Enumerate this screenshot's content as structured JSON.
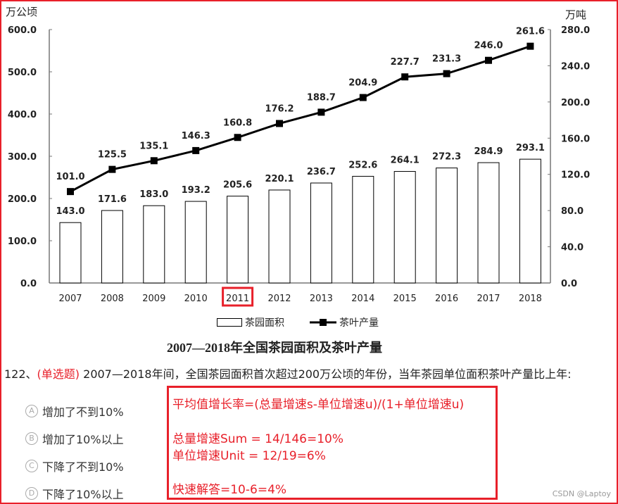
{
  "chart_data": {
    "type": "bar+line",
    "title": "2007—2018年全国茶园面积及茶叶产量",
    "categories": [
      "2007",
      "2008",
      "2009",
      "2010",
      "2011",
      "2012",
      "2013",
      "2014",
      "2015",
      "2016",
      "2017",
      "2018"
    ],
    "highlighted_category": "2011",
    "series": [
      {
        "name": "茶园面积",
        "type": "bar",
        "axis": "left",
        "values": [
          143.0,
          171.6,
          183.0,
          193.2,
          205.6,
          220.1,
          236.7,
          252.6,
          264.1,
          272.3,
          284.9,
          293.1
        ]
      },
      {
        "name": "茶叶产量",
        "type": "line",
        "axis": "right",
        "values": [
          101.0,
          125.5,
          135.1,
          146.3,
          160.8,
          176.2,
          188.7,
          204.9,
          227.7,
          231.3,
          246.0,
          261.6
        ]
      }
    ],
    "left_axis": {
      "unit": "万公顷",
      "ylim": [
        0,
        600
      ],
      "ticks": [
        "0.0",
        "100.0",
        "200.0",
        "300.0",
        "400.0",
        "500.0",
        "600.0"
      ]
    },
    "right_axis": {
      "unit": "万吨",
      "ylim": [
        0,
        280
      ],
      "ticks": [
        "0.0",
        "40.0",
        "80.0",
        "120.0",
        "160.0",
        "200.0",
        "240.0",
        "280.0"
      ]
    },
    "grid": false,
    "legend": "bottom"
  },
  "question": {
    "number": "122、",
    "type_tag": "(单选题)",
    "text": " 2007—2018年间，全国茶园面积首次超过200万公顷的年份，当年茶园单位面积茶叶产量比上年:",
    "options": [
      {
        "letter": "A",
        "text": "增加了不到10%"
      },
      {
        "letter": "B",
        "text": "增加了10%以上"
      },
      {
        "letter": "C",
        "text": "下降了不到10%"
      },
      {
        "letter": "D",
        "text": "下降了10%以上"
      }
    ]
  },
  "note": {
    "line1": "平均值增长率=(总量增速s-单位增速u)/(1+单位增速u)",
    "line2": "总量增速Sum = 14/146=10%",
    "line3": "单位增速Unit = 12/19=6%",
    "line4": "快速解答=10-6=4%"
  },
  "watermark": "CSDN @Laptoy",
  "colors": {
    "accent": "#e8202a",
    "bar_fill": "#ffffff",
    "line": "#000000"
  }
}
